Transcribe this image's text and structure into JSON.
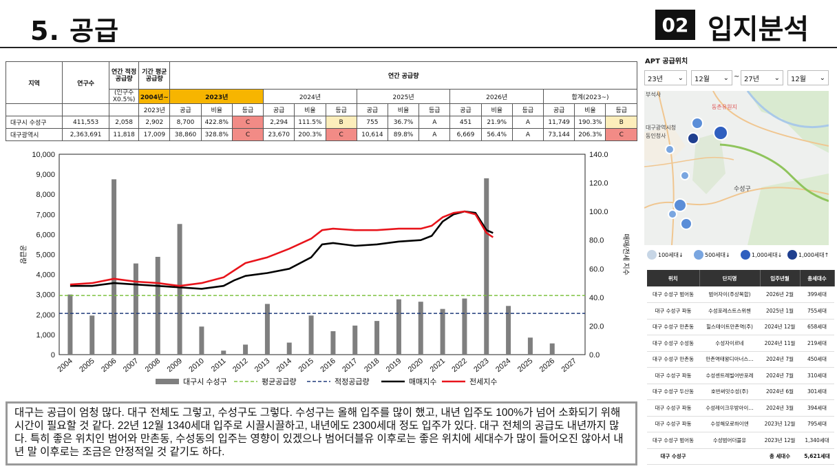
{
  "header": {
    "title": "5. 공급",
    "section_number": "02",
    "section_title": "입지분석"
  },
  "table": {
    "h_region": "지역",
    "h_population": "연구수",
    "h_annual_proper": "연간 적정 공급량",
    "h_pct": "(인구수 X0.5%)",
    "h_period_avg": "기간 평균 공급량",
    "h_period_range": "2004년~",
    "h_period_end": "2023년",
    "h_annual_supply": "연간 공급량",
    "years": [
      "2023년",
      "2024년",
      "2025년",
      "2026년",
      "합계(2023~)"
    ],
    "sub": [
      "공급",
      "비율",
      "등급"
    ],
    "rows": [
      {
        "region": "대구시 수성구",
        "population": "411,553",
        "proper": "2,058",
        "avg": "2,902",
        "cells": [
          [
            "8,700",
            "422.8%",
            "C"
          ],
          [
            "2,294",
            "111.5%",
            "B"
          ],
          [
            "755",
            "36.7%",
            "A"
          ],
          [
            "451",
            "21.9%",
            "A"
          ],
          [
            "11,749",
            "190.3%",
            "B"
          ]
        ]
      },
      {
        "region": "대구광역시",
        "population": "2,363,691",
        "proper": "11,818",
        "avg": "17,009",
        "cells": [
          [
            "38,860",
            "328.8%",
            "C"
          ],
          [
            "23,670",
            "200.3%",
            "C"
          ],
          [
            "10,614",
            "89.8%",
            "A"
          ],
          [
            "6,669",
            "56.4%",
            "A"
          ],
          [
            "73,144",
            "206.3%",
            "C"
          ]
        ]
      }
    ]
  },
  "chart_data": {
    "type": "bar",
    "categories": [
      "2004",
      "2005",
      "2006",
      "2007",
      "2008",
      "2009",
      "2010",
      "2011",
      "2012",
      "2013",
      "2014",
      "2015",
      "2016",
      "2017",
      "2018",
      "2019",
      "2020",
      "2021",
      "2022",
      "2023",
      "2024",
      "2025",
      "2026",
      "2027"
    ],
    "series": [
      {
        "name": "대구시 수성구",
        "type": "bar",
        "axis": "left",
        "values": [
          3000,
          1950,
          8750,
          4550,
          4880,
          6520,
          1400,
          200,
          500,
          2530,
          600,
          1950,
          1170,
          1450,
          1680,
          2760,
          2640,
          2280,
          2800,
          8800,
          2430,
          850,
          560,
          0
        ]
      },
      {
        "name": "평균공급량",
        "type": "line",
        "axis": "left",
        "values": [
          2950,
          2950,
          2950,
          2950,
          2950,
          2950,
          2950,
          2950,
          2950,
          2950,
          2950,
          2950,
          2950,
          2950,
          2950,
          2950,
          2950,
          2950,
          2950,
          2950,
          2950,
          2950,
          2950,
          2950
        ]
      },
      {
        "name": "적정공급량",
        "type": "line",
        "axis": "left",
        "values": [
          2058,
          2058,
          2058,
          2058,
          2058,
          2058,
          2058,
          2058,
          2058,
          2058,
          2058,
          2058,
          2058,
          2058,
          2058,
          2058,
          2058,
          2058,
          2058,
          2058,
          2058,
          2058,
          2058,
          2058
        ]
      },
      {
        "name": "매매지수",
        "type": "line",
        "axis": "right",
        "x": [
          2004,
          2005,
          2006,
          2007,
          2008,
          2009,
          2010,
          2011,
          2011.5,
          2012,
          2013,
          2014,
          2015,
          2015.5,
          2016,
          2017,
          2018,
          2019,
          2020,
          2020.5,
          2021,
          2021.5,
          2022,
          2022.5,
          2023,
          2023.3
        ],
        "values": [
          48,
          48,
          50,
          49,
          48,
          47,
          46,
          48,
          52,
          55,
          57,
          60,
          68,
          77,
          78,
          76,
          77,
          79,
          80,
          83,
          93,
          98,
          100,
          99,
          87,
          85
        ]
      },
      {
        "name": "전세지수",
        "type": "line",
        "axis": "right",
        "x": [
          2004,
          2005,
          2006,
          2007,
          2008,
          2009,
          2010,
          2011,
          2011.5,
          2012,
          2013,
          2014,
          2015,
          2015.5,
          2016,
          2017,
          2018,
          2019,
          2020,
          2020.5,
          2021,
          2021.5,
          2022,
          2022.5,
          2023,
          2023.3
        ],
        "values": [
          49,
          50,
          53,
          51,
          50,
          48,
          50,
          54,
          59,
          64,
          68,
          74,
          81,
          87,
          88,
          87,
          87,
          88,
          88,
          90,
          96,
          99,
          100,
          98,
          85,
          82
        ]
      }
    ],
    "left_axis": {
      "ylabel": "공급량",
      "ylim": [
        0,
        10000
      ],
      "ticks": [
        "0",
        "1,000",
        "2,000",
        "3,000",
        "4,000",
        "5,000",
        "6,000",
        "7,000",
        "8,000",
        "9,000",
        "10,000"
      ]
    },
    "right_axis": {
      "ylabel": "매매/전세 지수",
      "ylim": [
        0,
        140
      ],
      "ticks": [
        "0.0",
        "20.0",
        "40.0",
        "60.0",
        "80.0",
        "100.0",
        "120.0",
        "140.0"
      ]
    },
    "colors": {
      "bar": "#7f7f7f",
      "avg": "#7fc241",
      "proper": "#1f3a7a",
      "sale": "#000000",
      "jeonse": "#e8141b"
    },
    "legend_position": "bottom"
  },
  "comment": "대구는 공급이 엄청 많다. 대구 전체도 그렇고, 수성구도 그렇다. 수성구는 올해 입주를 많이 했고, 내년 입주도 100%가 넘어 소화되기 위해 시간이 필요할 것 같다. 22년 12월 1340세대 입주로 시끌시끌하고, 내년에도 2300세대 정도 입주가 있다. 대구 전체의 공급도 내년까지 많다. 특히 좋은 위치인 범어와 만촌동, 수성동의 입주는 영향이 있겠으나 범어더블유 이후로는 좋은 위치에 세대수가 많이 들어오진 않아서 내년 말 이후로는 조금은 안정적일 것 같기도 하다.",
  "map_panel": {
    "title": "APT 공급위치",
    "from_year": "23년",
    "from_month": "12월",
    "tilde": "~",
    "to_year": "27년",
    "to_month": "12월",
    "map_labels": [
      "대구광역시청",
      "동인청사",
      "수성구",
      "동촌유원지"
    ],
    "legend": [
      "100세대↓",
      "500세대↓",
      "1,000세대↓",
      "1,000세대↑"
    ],
    "apt_headers": [
      "위치",
      "단지명",
      "입주년월",
      "총세대수"
    ],
    "apt_rows": [
      [
        "대구 수성구 범어동",
        "범어자이(주상복합)",
        "2026년 2월",
        "399세대"
      ],
      [
        "대구 수성구 파동",
        "수성포레스트스위첸",
        "2025년 1월",
        "755세대"
      ],
      [
        "대구 수성구 만촌동",
        "힐스테이트만촌역(주)",
        "2024년 12월",
        "658세대"
      ],
      [
        "대구 수성구 수성동",
        "수성자이르네",
        "2024년 11월",
        "219세대"
      ],
      [
        "대구 수성구 만촌동",
        "만촌역태왕디아너스…",
        "2024년 7월",
        "450세대"
      ],
      [
        "대구 수성구 파동",
        "수성센트레빌어반포레",
        "2024년 7월",
        "310세대"
      ],
      [
        "대구 수성구 두산동",
        "호반써밋수성(주)",
        "2024년 6월",
        "301세대"
      ],
      [
        "대구 수성구 파동",
        "수성레이크우방아이…",
        "2024년 3월",
        "394세대"
      ],
      [
        "대구 수성구 파동",
        "수성해모로하이엔",
        "2023년 12월",
        "795세대"
      ],
      [
        "대구 수성구 범어동",
        "수성범어더블유",
        "2023년 12월",
        "1,340세대"
      ]
    ],
    "apt_total": [
      "대구 수성구",
      "총 세대수",
      "5,621세대"
    ]
  }
}
